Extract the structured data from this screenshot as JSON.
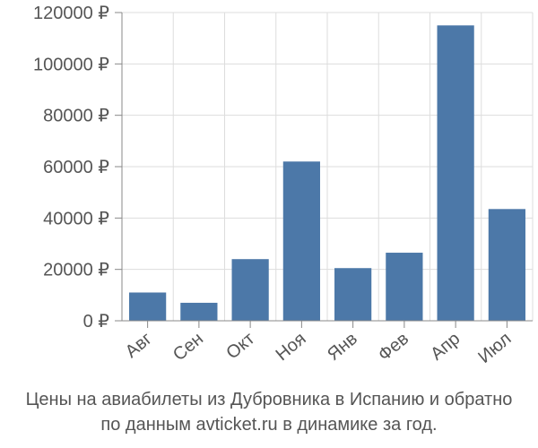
{
  "chart_data": {
    "type": "bar",
    "categories": [
      "Авг",
      "Сен",
      "Окт",
      "Ноя",
      "Янв",
      "Фев",
      "Апр",
      "Июл"
    ],
    "values": [
      11000,
      7000,
      24000,
      62000,
      20500,
      26500,
      115000,
      43500
    ],
    "ylim": [
      0,
      120000
    ],
    "yticks": [
      "0 ₽",
      "20000 ₽",
      "40000 ₽",
      "60000 ₽",
      "80000 ₽",
      "100000 ₽",
      "120000 ₽"
    ],
    "grid": true,
    "bar_color": "#4c78a8",
    "grid_color": "#dddddd",
    "axis_color": "#888888"
  },
  "caption": {
    "line1": "Цены на авиабилеты из Дубровника в Испанию и обратно",
    "line2": "по данным avticket.ru в динамике за год."
  }
}
